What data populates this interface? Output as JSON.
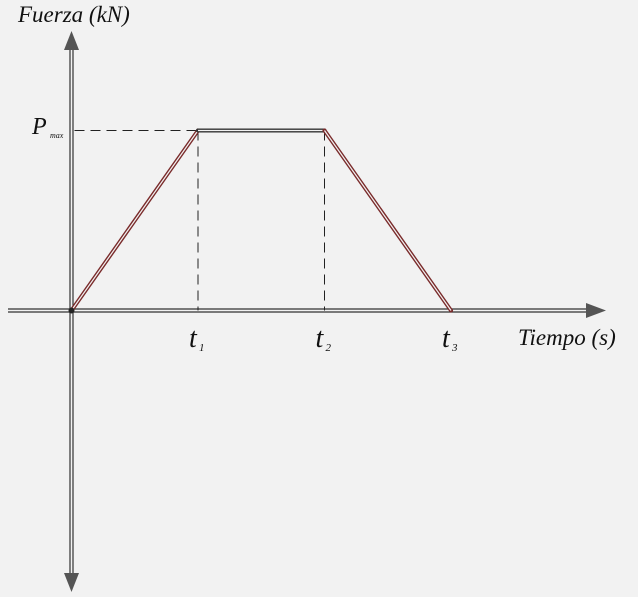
{
  "chart_data": {
    "type": "line",
    "ylabel": "Fuerza (kN)",
    "xlabel": "Tiempo (s)",
    "y_marker": {
      "main": "P",
      "sub": "max"
    },
    "x_markers": [
      {
        "main": "t",
        "sub": "1"
      },
      {
        "main": "t",
        "sub": "2"
      },
      {
        "main": "t",
        "sub": "3"
      }
    ],
    "series": [
      {
        "x": [
          0,
          1,
          2,
          3
        ],
        "y": [
          0,
          1,
          1,
          0
        ]
      }
    ],
    "xlim": [
      -0.5,
      4.2
    ],
    "ylim": [
      -2.8,
      1.6
    ],
    "grid": false,
    "colors": {
      "rising": "#7a2b2b",
      "plateau": "#333333",
      "falling": "#7a2b2b",
      "axis": "#333333",
      "guide": "#222222"
    }
  }
}
